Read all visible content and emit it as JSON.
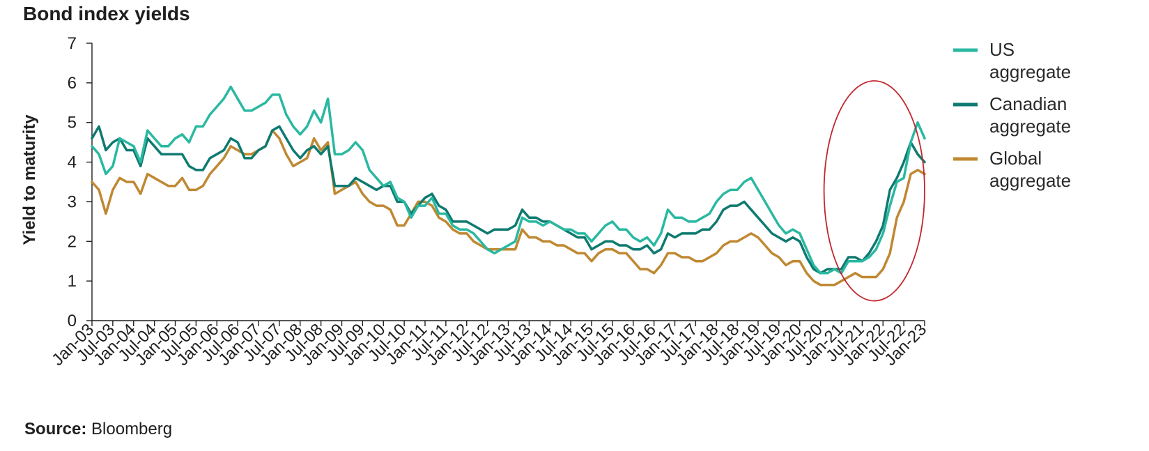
{
  "source": {
    "label": "Source:",
    "text": "Bloomberg"
  },
  "chart_data": {
    "type": "line",
    "title": "Bond index yields",
    "ylabel": "Yield to maturity",
    "xlabel": "",
    "ylim": [
      0,
      7
    ],
    "yticks": [
      0,
      1,
      2,
      3,
      4,
      5,
      6,
      7
    ],
    "xlim": [
      "2003-01",
      "2023-01"
    ],
    "xticks": [
      "Jan-03",
      "Jul-03",
      "Jan-04",
      "Jul-04",
      "Jan-05",
      "Jul-05",
      "Jan-06",
      "Jul-06",
      "Jan-07",
      "Jul-07",
      "Jan-08",
      "Jul-08",
      "Jan-09",
      "Jul-09",
      "Jan-10",
      "Jul-10",
      "Jan-11",
      "Jul-11",
      "Jan-12",
      "Jul-12",
      "Jan-13",
      "Jul-13",
      "Jan-14",
      "Jul-14",
      "Jan-15",
      "Jul-15",
      "Jan-16",
      "Jul-16",
      "Jan-17",
      "Jul-17",
      "Jan-18",
      "Jul-18",
      "Jan-19",
      "Jul-19",
      "Jan-20",
      "Jul-20",
      "Jan-21",
      "Jul-21",
      "Jan-22",
      "Jul-22",
      "Jan-23"
    ],
    "grid": false,
    "legend_position": "right",
    "annotation": {
      "shape": "ellipse",
      "color": "#c0272d",
      "x_range": [
        "2020-08",
        "2023-01"
      ],
      "y_range": [
        0.5,
        6.05
      ]
    },
    "x": [
      "2003-01",
      "2003-03",
      "2003-05",
      "2003-07",
      "2003-09",
      "2003-11",
      "2004-01",
      "2004-03",
      "2004-05",
      "2004-07",
      "2004-09",
      "2004-11",
      "2005-01",
      "2005-03",
      "2005-05",
      "2005-07",
      "2005-09",
      "2005-11",
      "2006-01",
      "2006-03",
      "2006-05",
      "2006-07",
      "2006-09",
      "2006-11",
      "2007-01",
      "2007-03",
      "2007-05",
      "2007-07",
      "2007-09",
      "2007-11",
      "2008-01",
      "2008-03",
      "2008-05",
      "2008-07",
      "2008-09",
      "2008-11",
      "2009-01",
      "2009-03",
      "2009-05",
      "2009-07",
      "2009-09",
      "2009-11",
      "2010-01",
      "2010-03",
      "2010-05",
      "2010-07",
      "2010-09",
      "2010-11",
      "2011-01",
      "2011-03",
      "2011-05",
      "2011-07",
      "2011-09",
      "2011-11",
      "2012-01",
      "2012-03",
      "2012-05",
      "2012-07",
      "2012-09",
      "2012-11",
      "2013-01",
      "2013-03",
      "2013-05",
      "2013-07",
      "2013-09",
      "2013-11",
      "2014-01",
      "2014-03",
      "2014-05",
      "2014-07",
      "2014-09",
      "2014-11",
      "2015-01",
      "2015-03",
      "2015-05",
      "2015-07",
      "2015-09",
      "2015-11",
      "2016-01",
      "2016-03",
      "2016-05",
      "2016-07",
      "2016-09",
      "2016-11",
      "2017-01",
      "2017-03",
      "2017-05",
      "2017-07",
      "2017-09",
      "2017-11",
      "2018-01",
      "2018-03",
      "2018-05",
      "2018-07",
      "2018-09",
      "2018-11",
      "2019-01",
      "2019-03",
      "2019-05",
      "2019-07",
      "2019-09",
      "2019-11",
      "2020-01",
      "2020-03",
      "2020-05",
      "2020-07",
      "2020-09",
      "2020-11",
      "2021-01",
      "2021-03",
      "2021-05",
      "2021-07",
      "2021-09",
      "2021-11",
      "2022-01",
      "2022-03",
      "2022-05",
      "2022-07",
      "2022-09",
      "2022-11",
      "2023-01"
    ],
    "series": [
      {
        "name": "US aggregate",
        "color": "#2ab8a1",
        "values": [
          4.4,
          4.2,
          3.7,
          3.9,
          4.6,
          4.5,
          4.4,
          4.0,
          4.8,
          4.6,
          4.4,
          4.4,
          4.6,
          4.7,
          4.5,
          4.9,
          4.9,
          5.2,
          5.4,
          5.6,
          5.9,
          5.6,
          5.3,
          5.3,
          5.4,
          5.5,
          5.7,
          5.7,
          5.2,
          4.9,
          4.7,
          4.9,
          5.3,
          5.0,
          5.6,
          4.2,
          4.2,
          4.3,
          4.5,
          4.3,
          3.8,
          3.6,
          3.4,
          3.5,
          3.1,
          3.0,
          2.6,
          2.9,
          2.9,
          3.1,
          2.7,
          2.7,
          2.4,
          2.3,
          2.3,
          2.2,
          2.0,
          1.8,
          1.7,
          1.8,
          1.9,
          2.0,
          2.6,
          2.5,
          2.5,
          2.4,
          2.5,
          2.4,
          2.3,
          2.3,
          2.2,
          2.2,
          2.0,
          2.2,
          2.4,
          2.5,
          2.3,
          2.3,
          2.1,
          2.0,
          2.1,
          1.9,
          2.2,
          2.8,
          2.6,
          2.6,
          2.5,
          2.5,
          2.6,
          2.7,
          3.0,
          3.2,
          3.3,
          3.3,
          3.5,
          3.6,
          3.3,
          3.0,
          2.7,
          2.4,
          2.2,
          2.3,
          2.2,
          1.8,
          1.4,
          1.2,
          1.2,
          1.3,
          1.2,
          1.5,
          1.5,
          1.5,
          1.6,
          1.8,
          2.2,
          2.9,
          3.5,
          3.6,
          4.5,
          5.0,
          4.6
        ]
      },
      {
        "name": "Canadian aggregate",
        "color": "#0e7a70",
        "values": [
          4.6,
          4.9,
          4.3,
          4.5,
          4.6,
          4.3,
          4.3,
          3.9,
          4.6,
          4.4,
          4.2,
          4.2,
          4.2,
          4.2,
          3.9,
          3.8,
          3.8,
          4.1,
          4.2,
          4.3,
          4.6,
          4.5,
          4.1,
          4.1,
          4.3,
          4.4,
          4.8,
          4.9,
          4.6,
          4.3,
          4.1,
          4.3,
          4.4,
          4.2,
          4.4,
          3.4,
          3.4,
          3.4,
          3.6,
          3.5,
          3.4,
          3.3,
          3.4,
          3.4,
          3.0,
          3.0,
          2.7,
          2.9,
          3.1,
          3.2,
          2.9,
          2.8,
          2.5,
          2.5,
          2.5,
          2.4,
          2.3,
          2.2,
          2.3,
          2.3,
          2.3,
          2.4,
          2.8,
          2.6,
          2.6,
          2.5,
          2.5,
          2.4,
          2.3,
          2.2,
          2.1,
          2.1,
          1.8,
          1.9,
          2.0,
          2.0,
          1.9,
          1.9,
          1.8,
          1.8,
          1.9,
          1.7,
          1.8,
          2.2,
          2.1,
          2.2,
          2.2,
          2.2,
          2.3,
          2.3,
          2.5,
          2.8,
          2.9,
          2.9,
          3.0,
          2.8,
          2.6,
          2.4,
          2.2,
          2.1,
          2.0,
          2.1,
          2.0,
          1.6,
          1.3,
          1.2,
          1.3,
          1.3,
          1.3,
          1.6,
          1.6,
          1.5,
          1.7,
          2.0,
          2.4,
          3.3,
          3.6,
          4.0,
          4.5,
          4.2,
          4.0
        ]
      },
      {
        "name": "Global aggregate",
        "color": "#bf8832",
        "values": [
          3.5,
          3.3,
          2.7,
          3.3,
          3.6,
          3.5,
          3.5,
          3.2,
          3.7,
          3.6,
          3.5,
          3.4,
          3.4,
          3.6,
          3.3,
          3.3,
          3.4,
          3.7,
          3.9,
          4.1,
          4.4,
          4.3,
          4.2,
          4.2,
          4.3,
          4.4,
          4.8,
          4.6,
          4.2,
          3.9,
          4.0,
          4.1,
          4.6,
          4.3,
          4.5,
          3.2,
          3.3,
          3.4,
          3.5,
          3.2,
          3.0,
          2.9,
          2.9,
          2.8,
          2.4,
          2.4,
          2.7,
          3.0,
          3.0,
          2.9,
          2.6,
          2.5,
          2.3,
          2.2,
          2.2,
          2.0,
          1.9,
          1.8,
          1.8,
          1.8,
          1.8,
          1.8,
          2.3,
          2.1,
          2.1,
          2.0,
          2.0,
          1.9,
          1.9,
          1.8,
          1.7,
          1.7,
          1.5,
          1.7,
          1.8,
          1.8,
          1.7,
          1.7,
          1.5,
          1.3,
          1.3,
          1.2,
          1.4,
          1.7,
          1.7,
          1.6,
          1.6,
          1.5,
          1.5,
          1.6,
          1.7,
          1.9,
          2.0,
          2.0,
          2.1,
          2.2,
          2.1,
          1.9,
          1.7,
          1.6,
          1.4,
          1.5,
          1.5,
          1.2,
          1.0,
          0.9,
          0.9,
          0.9,
          1.0,
          1.1,
          1.2,
          1.1,
          1.1,
          1.1,
          1.3,
          1.7,
          2.6,
          3.0,
          3.7,
          3.8,
          3.7
        ]
      }
    ]
  }
}
